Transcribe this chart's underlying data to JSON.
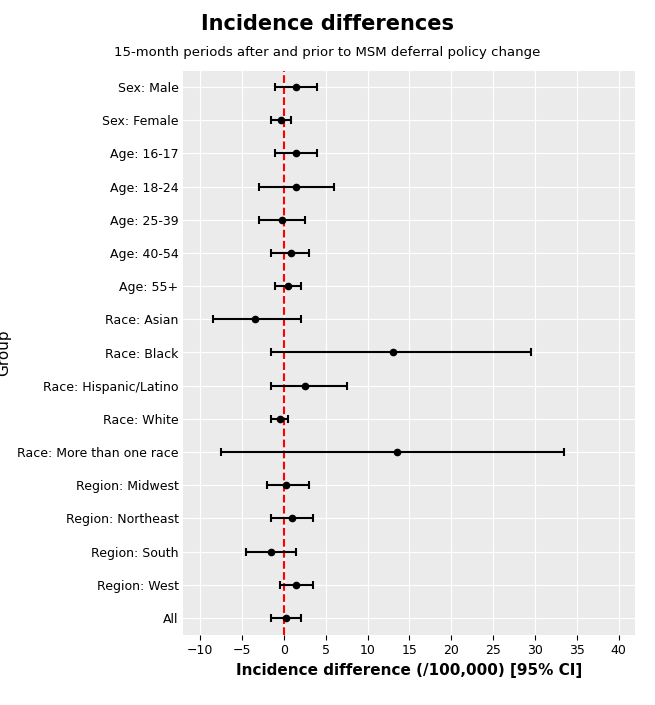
{
  "title": "Incidence differences",
  "subtitle": "15-month periods after and prior to MSM deferral policy change",
  "xlabel": "Incidence difference (/100,000) [95% CI]",
  "ylabel": "Group",
  "groups": [
    "Sex: Male",
    "Sex: Female",
    "Age: 16-17",
    "Age: 18-24",
    "Age: 25-39",
    "Age: 40-54",
    "Age: 55+",
    "Race: Asian",
    "Race: Black",
    "Race: Hispanic/Latino",
    "Race: White",
    "Race: More than one race",
    "Region: Midwest",
    "Region: Northeast",
    "Region: South",
    "Region: West",
    "All"
  ],
  "point_estimates": [
    1.5,
    -0.3,
    1.5,
    1.5,
    -0.2,
    0.8,
    0.5,
    -3.5,
    13.0,
    2.5,
    -0.5,
    13.5,
    0.3,
    1.0,
    -1.5,
    1.5,
    0.3
  ],
  "ci_lower": [
    -1.0,
    -1.5,
    -1.0,
    -3.0,
    -3.0,
    -1.5,
    -1.0,
    -8.5,
    -1.5,
    -1.5,
    -1.5,
    -7.5,
    -2.0,
    -1.5,
    -4.5,
    -0.5,
    -1.5
  ],
  "ci_upper": [
    4.0,
    0.8,
    4.0,
    6.0,
    2.5,
    3.0,
    2.0,
    2.0,
    29.5,
    7.5,
    0.5,
    33.5,
    3.0,
    3.5,
    1.5,
    3.5,
    2.0
  ],
  "xlim": [
    -12,
    42
  ],
  "xticks": [
    -10,
    -5,
    0,
    5,
    10,
    15,
    20,
    25,
    30,
    35,
    40
  ],
  "ref_line_x": 0,
  "ref_line_color": "#FF0000",
  "point_color": "#000000",
  "line_color": "#000000",
  "bg_color": "#EBEBEB",
  "grid_color": "#FFFFFF",
  "title_fontsize": 15,
  "subtitle_fontsize": 9.5,
  "label_fontsize": 11,
  "tick_fontsize": 9,
  "capsize": 3
}
